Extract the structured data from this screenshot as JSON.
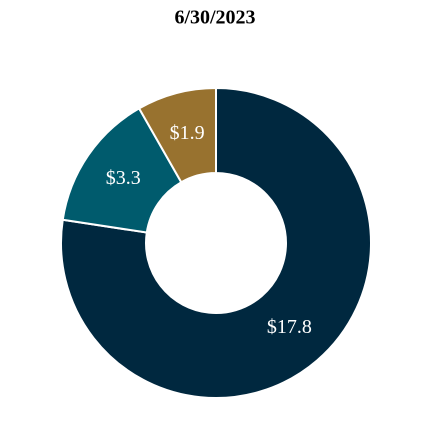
{
  "chart_data": {
    "type": "donut",
    "title": "6/30/2023",
    "values": [
      17.8,
      3.3,
      1.9
    ],
    "value_labels": [
      "$17.8",
      "$3.3",
      "$1.9"
    ],
    "colors": [
      "#00283f",
      "#005b6d",
      "#98722f"
    ]
  }
}
